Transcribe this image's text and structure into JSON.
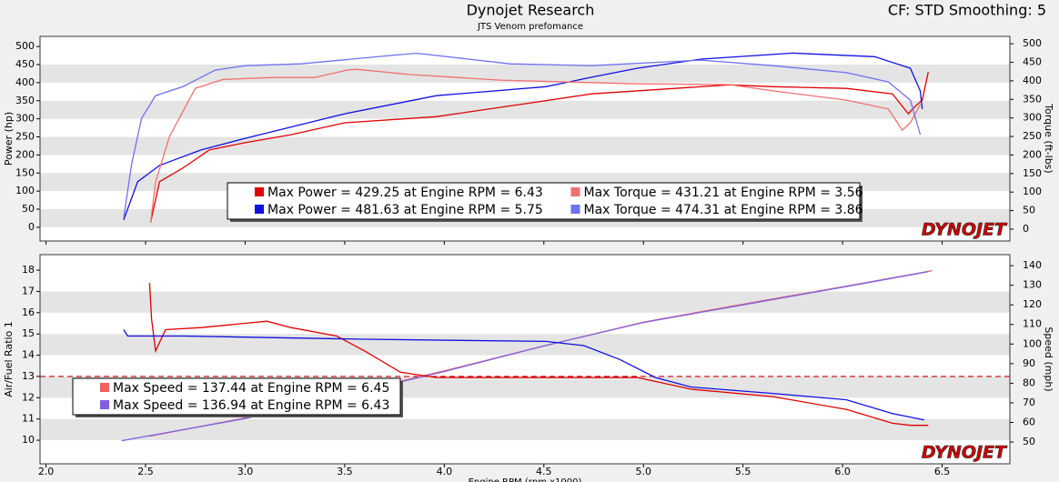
{
  "header": {
    "title": "Dynojet Research",
    "subtitle": "JTS Venom prefomance",
    "settings": "CF: STD Smoothing: 5"
  },
  "chart_data": [
    {
      "type": "line",
      "logo": "DYNOJET",
      "ylabel": "Power (hp)",
      "y2label": "Torque (ft-lbs)",
      "xlim": [
        1.97,
        6.84
      ],
      "xticks": [
        {
          "value": 2,
          "label": "2.0"
        },
        2.5,
        {
          "value": 3,
          "label": "3.0"
        },
        3.5,
        {
          "value": 4,
          "label": "4.0"
        },
        4.5,
        {
          "value": 5,
          "label": "5.0"
        },
        5.5,
        {
          "value": 6,
          "label": "6.0"
        },
        6.5
      ],
      "ylim": [
        -38,
        528
      ],
      "yticks": [
        0,
        50,
        100,
        150,
        200,
        250,
        300,
        350,
        400,
        450,
        500
      ],
      "y2lim": [
        -32,
        520
      ],
      "y2ticks": [
        0,
        50,
        100,
        150,
        200,
        250,
        300,
        350,
        400,
        450,
        500
      ],
      "series": [
        {
          "name": "Max Power = 429.25 at Engine RPM = 6.43",
          "color": "#e00000",
          "x": [
            2.525,
            2.57,
            2.685,
            2.82,
            3.0,
            3.23,
            3.5,
            3.96,
            4.47,
            4.74,
            5.43,
            5.65,
            6.02,
            6.25,
            6.33,
            6.36,
            6.4,
            6.43
          ],
          "values": [
            13,
            126,
            163,
            214,
            234,
            256,
            289,
            306,
            347,
            369,
            394,
            389,
            384,
            369,
            314,
            332,
            352,
            429.25
          ]
        },
        {
          "name": "Max Power = 481.63 at Engine RPM = 5.75",
          "color": "#1010e0",
          "x": [
            2.39,
            2.46,
            2.57,
            2.78,
            3.0,
            3.28,
            3.5,
            3.96,
            4.51,
            4.74,
            4.97,
            5.29,
            5.56,
            5.75,
            6.16,
            6.34,
            6.39,
            6.4
          ],
          "values": [
            20,
            126,
            171,
            214,
            246,
            284,
            314,
            364,
            389,
            415,
            440,
            465,
            475,
            481.63,
            472,
            440,
            377,
            327
          ]
        },
        {
          "name": "Max Torque = 431.21 at Engine RPM = 3.56",
          "color": "#f07070",
          "axis": "y2",
          "x": [
            2.525,
            2.55,
            2.62,
            2.75,
            2.89,
            3.14,
            3.35,
            3.51,
            3.56,
            3.83,
            4.28,
            4.97,
            5.43,
            5.65,
            6.02,
            6.23,
            6.3,
            6.34,
            6.39
          ],
          "values": [
            17,
            127,
            250,
            380,
            404,
            409,
            409,
            429,
            431.21,
            417,
            402,
            392,
            390,
            373,
            348,
            324,
            267,
            287,
            336
          ]
        },
        {
          "name": "Max Torque = 474.31 at Engine RPM = 3.86",
          "color": "#7070f0",
          "axis": "y2",
          "x": [
            2.39,
            2.43,
            2.48,
            2.55,
            2.69,
            2.85,
            3.0,
            3.28,
            3.78,
            3.86,
            3.92,
            4.33,
            4.74,
            5.29,
            5.65,
            6.02,
            6.23,
            6.34,
            6.39
          ],
          "values": [
            29,
            176,
            299,
            360,
            385,
            429,
            441,
            446,
            471,
            474.31,
            471,
            446,
            441,
            456,
            441,
            422,
            397,
            348,
            255
          ]
        }
      ]
    },
    {
      "type": "line",
      "logo": "DYNOJET",
      "ylabel": "Air/Fuel Ratio 1",
      "y2label": "Speed (mph)",
      "xlabel": "Engine RPM (rpm x1000)",
      "reference_line": 13,
      "xlim": [
        1.97,
        6.84
      ],
      "xticks": [
        {
          "value": 2,
          "label": "2.0"
        },
        2.5,
        {
          "value": 3,
          "label": "3.0"
        },
        3.5,
        {
          "value": 4,
          "label": "4.0"
        },
        4.5,
        {
          "value": 5,
          "label": "5.0"
        },
        5.5,
        {
          "value": 6,
          "label": "6.0"
        },
        6.5
      ],
      "ylim": [
        8.89,
        18.73
      ],
      "yticks": [
        10,
        11,
        12,
        13,
        14,
        15,
        16,
        17,
        18
      ],
      "y2lim": [
        38.9,
        145.6
      ],
      "y2ticks": [
        50,
        60,
        70,
        80,
        90,
        100,
        110,
        120,
        130,
        140
      ],
      "series": [
        {
          "name": "Max Speed = 137.44 at Engine RPM = 6.45",
          "color": "#f06060",
          "axis": "y2",
          "legend": true,
          "x": [
            2.52,
            3.0,
            3.5,
            4.0,
            4.5,
            5.0,
            5.5,
            6.0,
            6.45
          ],
          "values": [
            53,
            62.3,
            74.2,
            86.3,
            99,
            111.2,
            120.3,
            129.2,
            137.44
          ]
        },
        {
          "name": "Max Speed = 136.94 at Engine RPM = 6.43",
          "color": "#8060e0",
          "axis": "y2",
          "legend": true,
          "x": [
            2.38,
            3.0,
            3.5,
            4.0,
            4.5,
            5.0,
            5.5,
            6.0,
            6.43
          ],
          "values": [
            50.7,
            62,
            74,
            86,
            99,
            111,
            120,
            129,
            136.94
          ]
        },
        {
          "color": "#e00000",
          "x": [
            2.52,
            2.53,
            2.55,
            2.6,
            2.78,
            3.0,
            3.11,
            3.23,
            3.46,
            3.6,
            3.78,
            3.96,
            4.51,
            4.97,
            5.24,
            5.65,
            6.02,
            6.25,
            6.34,
            6.43
          ],
          "values": [
            17.4,
            15.7,
            14.2,
            15.2,
            15.3,
            15.5,
            15.6,
            15.3,
            14.9,
            14.2,
            13.2,
            12.95,
            12.95,
            12.95,
            12.4,
            12.05,
            11.45,
            10.8,
            10.7,
            10.7
          ]
        },
        {
          "color": "#1010e0",
          "x": [
            2.39,
            2.41,
            2.69,
            3.6,
            4.51,
            4.7,
            4.88,
            5.06,
            5.24,
            5.65,
            6.02,
            6.25,
            6.41
          ],
          "values": [
            15.2,
            14.9,
            14.9,
            14.75,
            14.65,
            14.45,
            13.8,
            12.95,
            12.5,
            12.2,
            11.9,
            11.25,
            10.95
          ]
        }
      ]
    }
  ]
}
